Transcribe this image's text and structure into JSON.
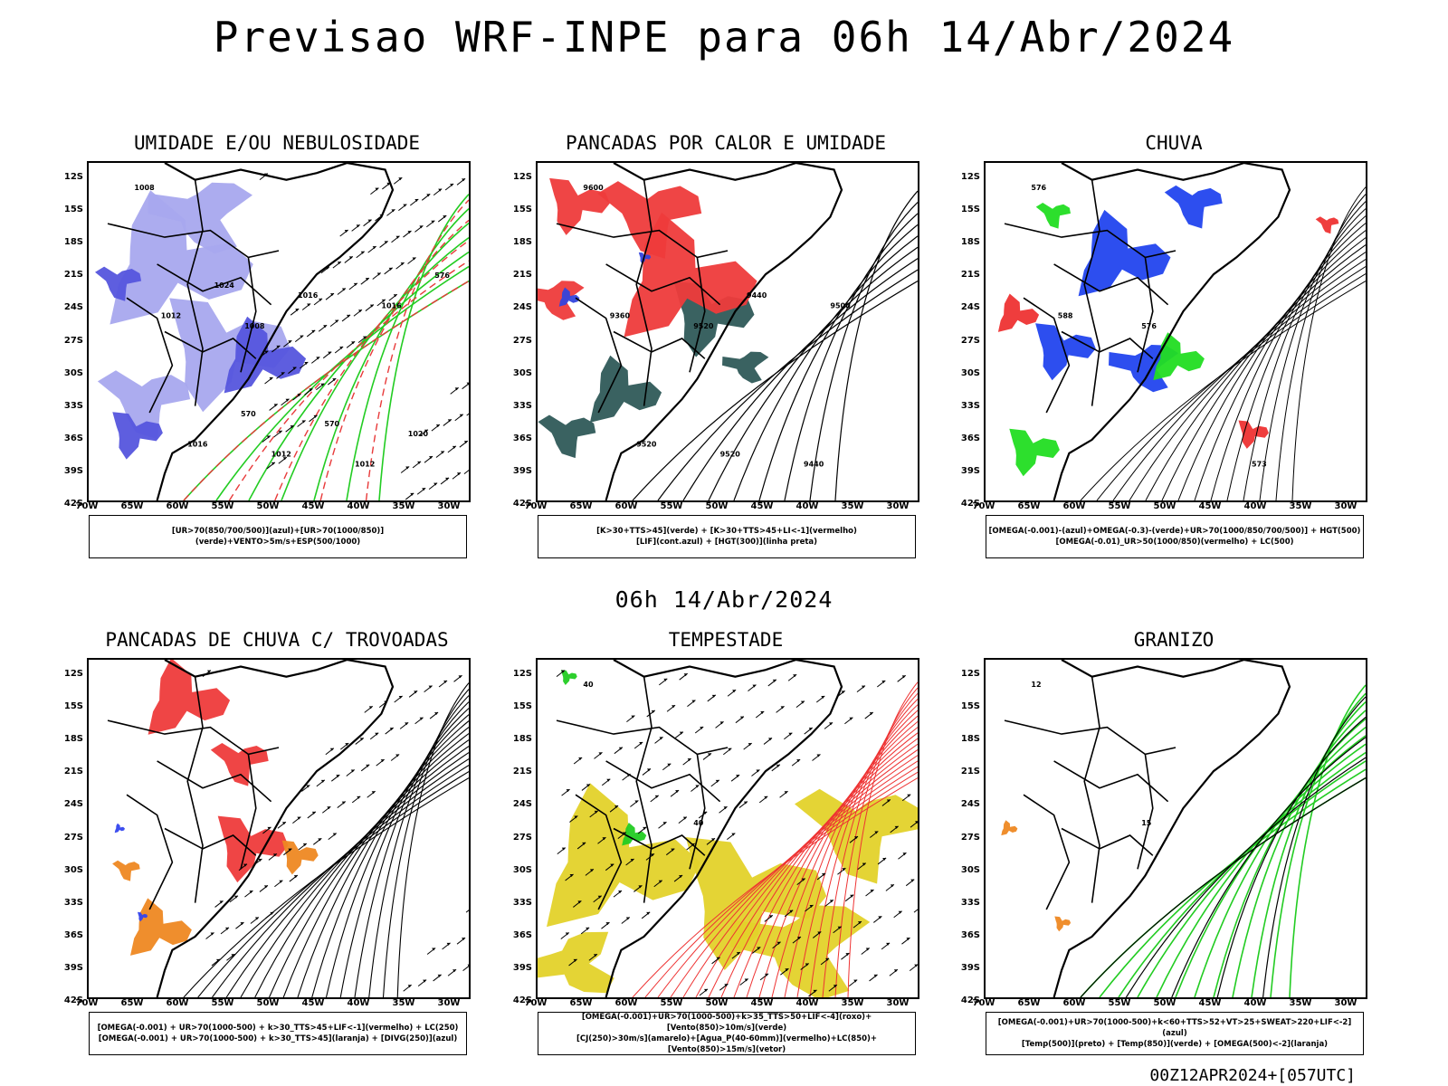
{
  "title": "Previsao WRF-INPE  para 06h 14/Abr/2024",
  "subtitle": "06h 14/Abr/2024",
  "footer": "00Z12APR2024+[057UTC]",
  "axes": {
    "lat_labels": [
      "12S",
      "15S",
      "18S",
      "21S",
      "24S",
      "27S",
      "30S",
      "33S",
      "36S",
      "39S",
      "42S"
    ],
    "lon_labels": [
      "70W",
      "65W",
      "60W",
      "55W",
      "50W",
      "45W",
      "40W",
      "35W",
      "30W"
    ]
  },
  "panels": [
    {
      "title": "UMIDADE E/OU NEBULOSIDADE",
      "legend": [
        "[UR>70(850/700/500)](azul)+[UR>70(1000/850)](verde)+VENTO>5m/s+ESP(500/1000)"
      ],
      "contour_labels": [
        "1008",
        "1008",
        "1012",
        "1012",
        "1012",
        "1016",
        "1016",
        "1016",
        "1020",
        "1024",
        "570",
        "576",
        "570"
      ]
    },
    {
      "title": "PANCADAS POR CALOR E UMIDADE",
      "legend": [
        "[K>30+TTS>45](verde)  +  [K>30+TTS>45+LI<-1](vermelho)",
        "[LIF](cont.azul)  +  [HGT(300)](linha preta)"
      ],
      "contour_labels": [
        "9600",
        "9520",
        "9440",
        "9360",
        "9520",
        "9500",
        "9520",
        "9440"
      ]
    },
    {
      "title": "CHUVA",
      "legend": [
        "[OMEGA(-0.001)-(azul)+OMEGA(-0.3)-(verde)+UR>70(1000/850/700/500)] + HGT(500)",
        "[OMEGA(-0.01)_UR>50(1000/850)(vermelho) + LC(500)"
      ],
      "contour_labels": [
        "576",
        "576",
        "573",
        "588"
      ]
    },
    {
      "title": "PANCADAS DE CHUVA C/ TROVOADAS",
      "legend": [
        "[OMEGA(-0.001) + UR>70(1000-500) + k>30_TTS>45+LIF<-1](vermelho) + LC(250)",
        "[OMEGA(-0.001) + UR>70(1000-500) + k>30_TTS>45](laranja) + [DIVG(250)](azul)"
      ],
      "contour_labels": []
    },
    {
      "title": "TEMPESTADE",
      "legend": [
        "[OMEGA(-0.001)+UR>70(1000-500)+k>35_TTS>50+LIF<-4](roxo)+[Vento(850)>10m/s](verde)",
        "[CJ(250)>30m/s](amarelo)+[Agua_P(40-60mm)](vermelho)+LC(850)+[Vento(850)>15m/s](vetor)"
      ],
      "contour_labels": [
        "40",
        "40"
      ]
    },
    {
      "title": "GRANIZO",
      "legend": [
        "[OMEGA(-0.001)+UR>70(1000-500)+k<60+TTS>52+VT>25+SWEAT>220+LIF<-2](azul)",
        "[Temp(500)](preto) + [Temp(850)](verde) + [OMEGA(500)<-2](laranja)"
      ],
      "contour_labels": [
        "12",
        "15"
      ]
    }
  ]
}
